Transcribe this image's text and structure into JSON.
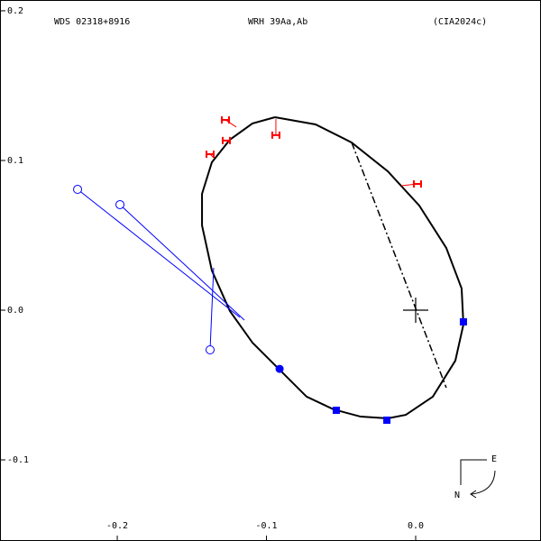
{
  "chart_data": {
    "type": "scatter",
    "title": "WDS 02318+8916",
    "subtitle": "WRH  39Aa,Ab",
    "annotation": "(CIA2024c)",
    "compass": {
      "east": "E",
      "north": "N"
    },
    "xlim": [
      -0.2786,
      0.084
    ],
    "ylim": [
      -0.1542,
      0.2072
    ],
    "xticks": [
      -0.2,
      -0.1,
      {
        "value": 0,
        "label": "0.0"
      }
    ],
    "yticks": [
      0.2,
      0.1,
      {
        "value": 0,
        "label": "0.0"
      },
      -0.1
    ],
    "series": [
      {
        "marker": "line",
        "color": "#000000",
        "x": [
          -0.0943,
          -0.0671,
          -0.0429,
          -0.0187,
          0.0024,
          0.0205,
          0.0308,
          0.032,
          0.0266,
          0.0115,
          -0.0066,
          -0.0187,
          -0.0369,
          -0.055,
          -0.0731,
          -0.0912,
          -0.1094,
          -0.1245,
          -0.1366,
          -0.1432,
          -0.1432,
          -0.1366,
          -0.1245,
          -0.1094,
          -0.0943
        ],
        "y": [
          0.1289,
          0.1241,
          0.112,
          0.0928,
          0.0699,
          0.0416,
          0.0145,
          -0.0096,
          -0.0337,
          -0.0578,
          -0.0699,
          -0.0723,
          -0.0711,
          -0.0663,
          -0.0578,
          -0.0398,
          -0.0217,
          -0.0006,
          0.0265,
          0.0566,
          0.0777,
          0.0988,
          0.1139,
          0.1247,
          0.1289
        ]
      },
      {
        "marker": "dashdot",
        "color": "#000000",
        "x": [
          -0.0429,
          0.0205
        ],
        "y": [
          0.112,
          -0.0518
        ]
      },
      {
        "marker": "square",
        "color": "#0000ff",
        "x": [
          -0.0532,
          -0.0193,
          0.032
        ],
        "y": [
          -0.0669,
          -0.0735,
          -0.0078
        ]
      },
      {
        "marker": "dot",
        "color": "#0000ff",
        "x": [
          -0.0912
        ],
        "y": [
          -0.0392
        ]
      },
      {
        "marker": "open-circle",
        "color": "#0000ff",
        "x": [
          -0.2266,
          -0.1982,
          -0.1378
        ],
        "y": [
          0.0807,
          0.0705,
          -0.0265
        ],
        "x_end": [
          -0.1178,
          -0.1148,
          -0.1354
        ],
        "y_end": [
          -0.0048,
          -0.0066,
          0.0283
        ]
      },
      {
        "marker": "H",
        "color": "#ff0000",
        "x": [
          -0.1275,
          -0.1269,
          -0.1378,
          -0.0937,
          0.0012
        ],
        "y": [
          0.1271,
          0.1133,
          0.1042,
          0.1169,
          0.0843
        ],
        "x_end": [
          -0.1202,
          -0.1245,
          -0.1353,
          -0.0937,
          -0.0097
        ],
        "y_end": [
          0.1223,
          0.112,
          0.1018,
          0.1277,
          0.0831
        ]
      }
    ]
  }
}
